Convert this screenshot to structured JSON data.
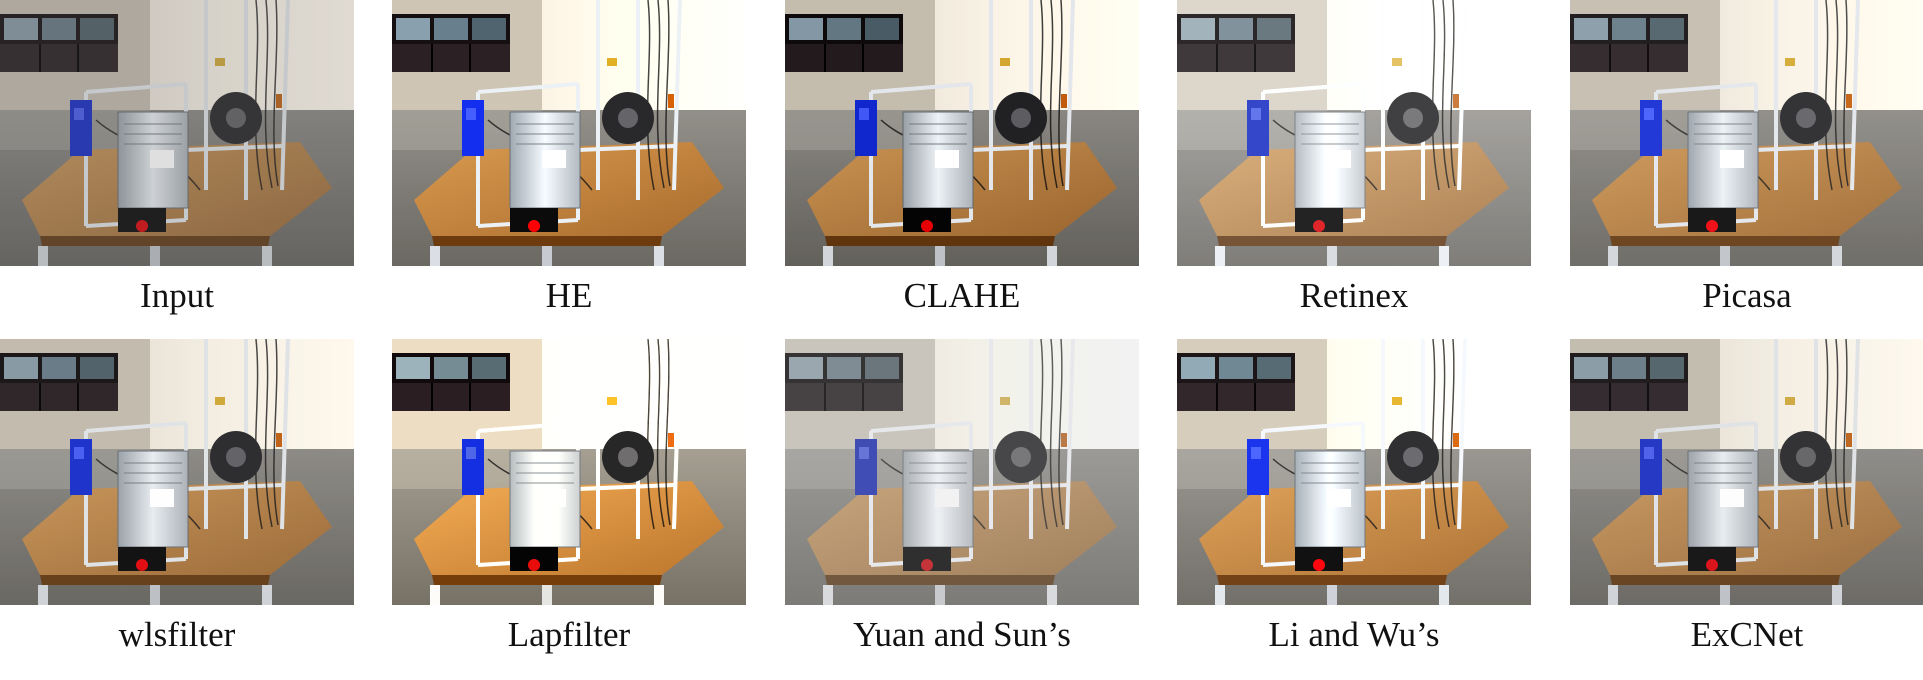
{
  "panels": [
    {
      "label": "Input",
      "variant": "input"
    },
    {
      "label": "HE",
      "variant": "he"
    },
    {
      "label": "CLAHE",
      "variant": "clahe"
    },
    {
      "label": "Retinex",
      "variant": "retinex"
    },
    {
      "label": "Picasa",
      "variant": "picasa"
    },
    {
      "label": "wlsfilter",
      "variant": "wls"
    },
    {
      "label": "Lapfilter",
      "variant": "lap"
    },
    {
      "label": "Yuan and Sun’s",
      "variant": "yuan"
    },
    {
      "label": "Li and Wu’s",
      "variant": "li"
    },
    {
      "label": "ExCNet",
      "variant": "excnet"
    }
  ]
}
